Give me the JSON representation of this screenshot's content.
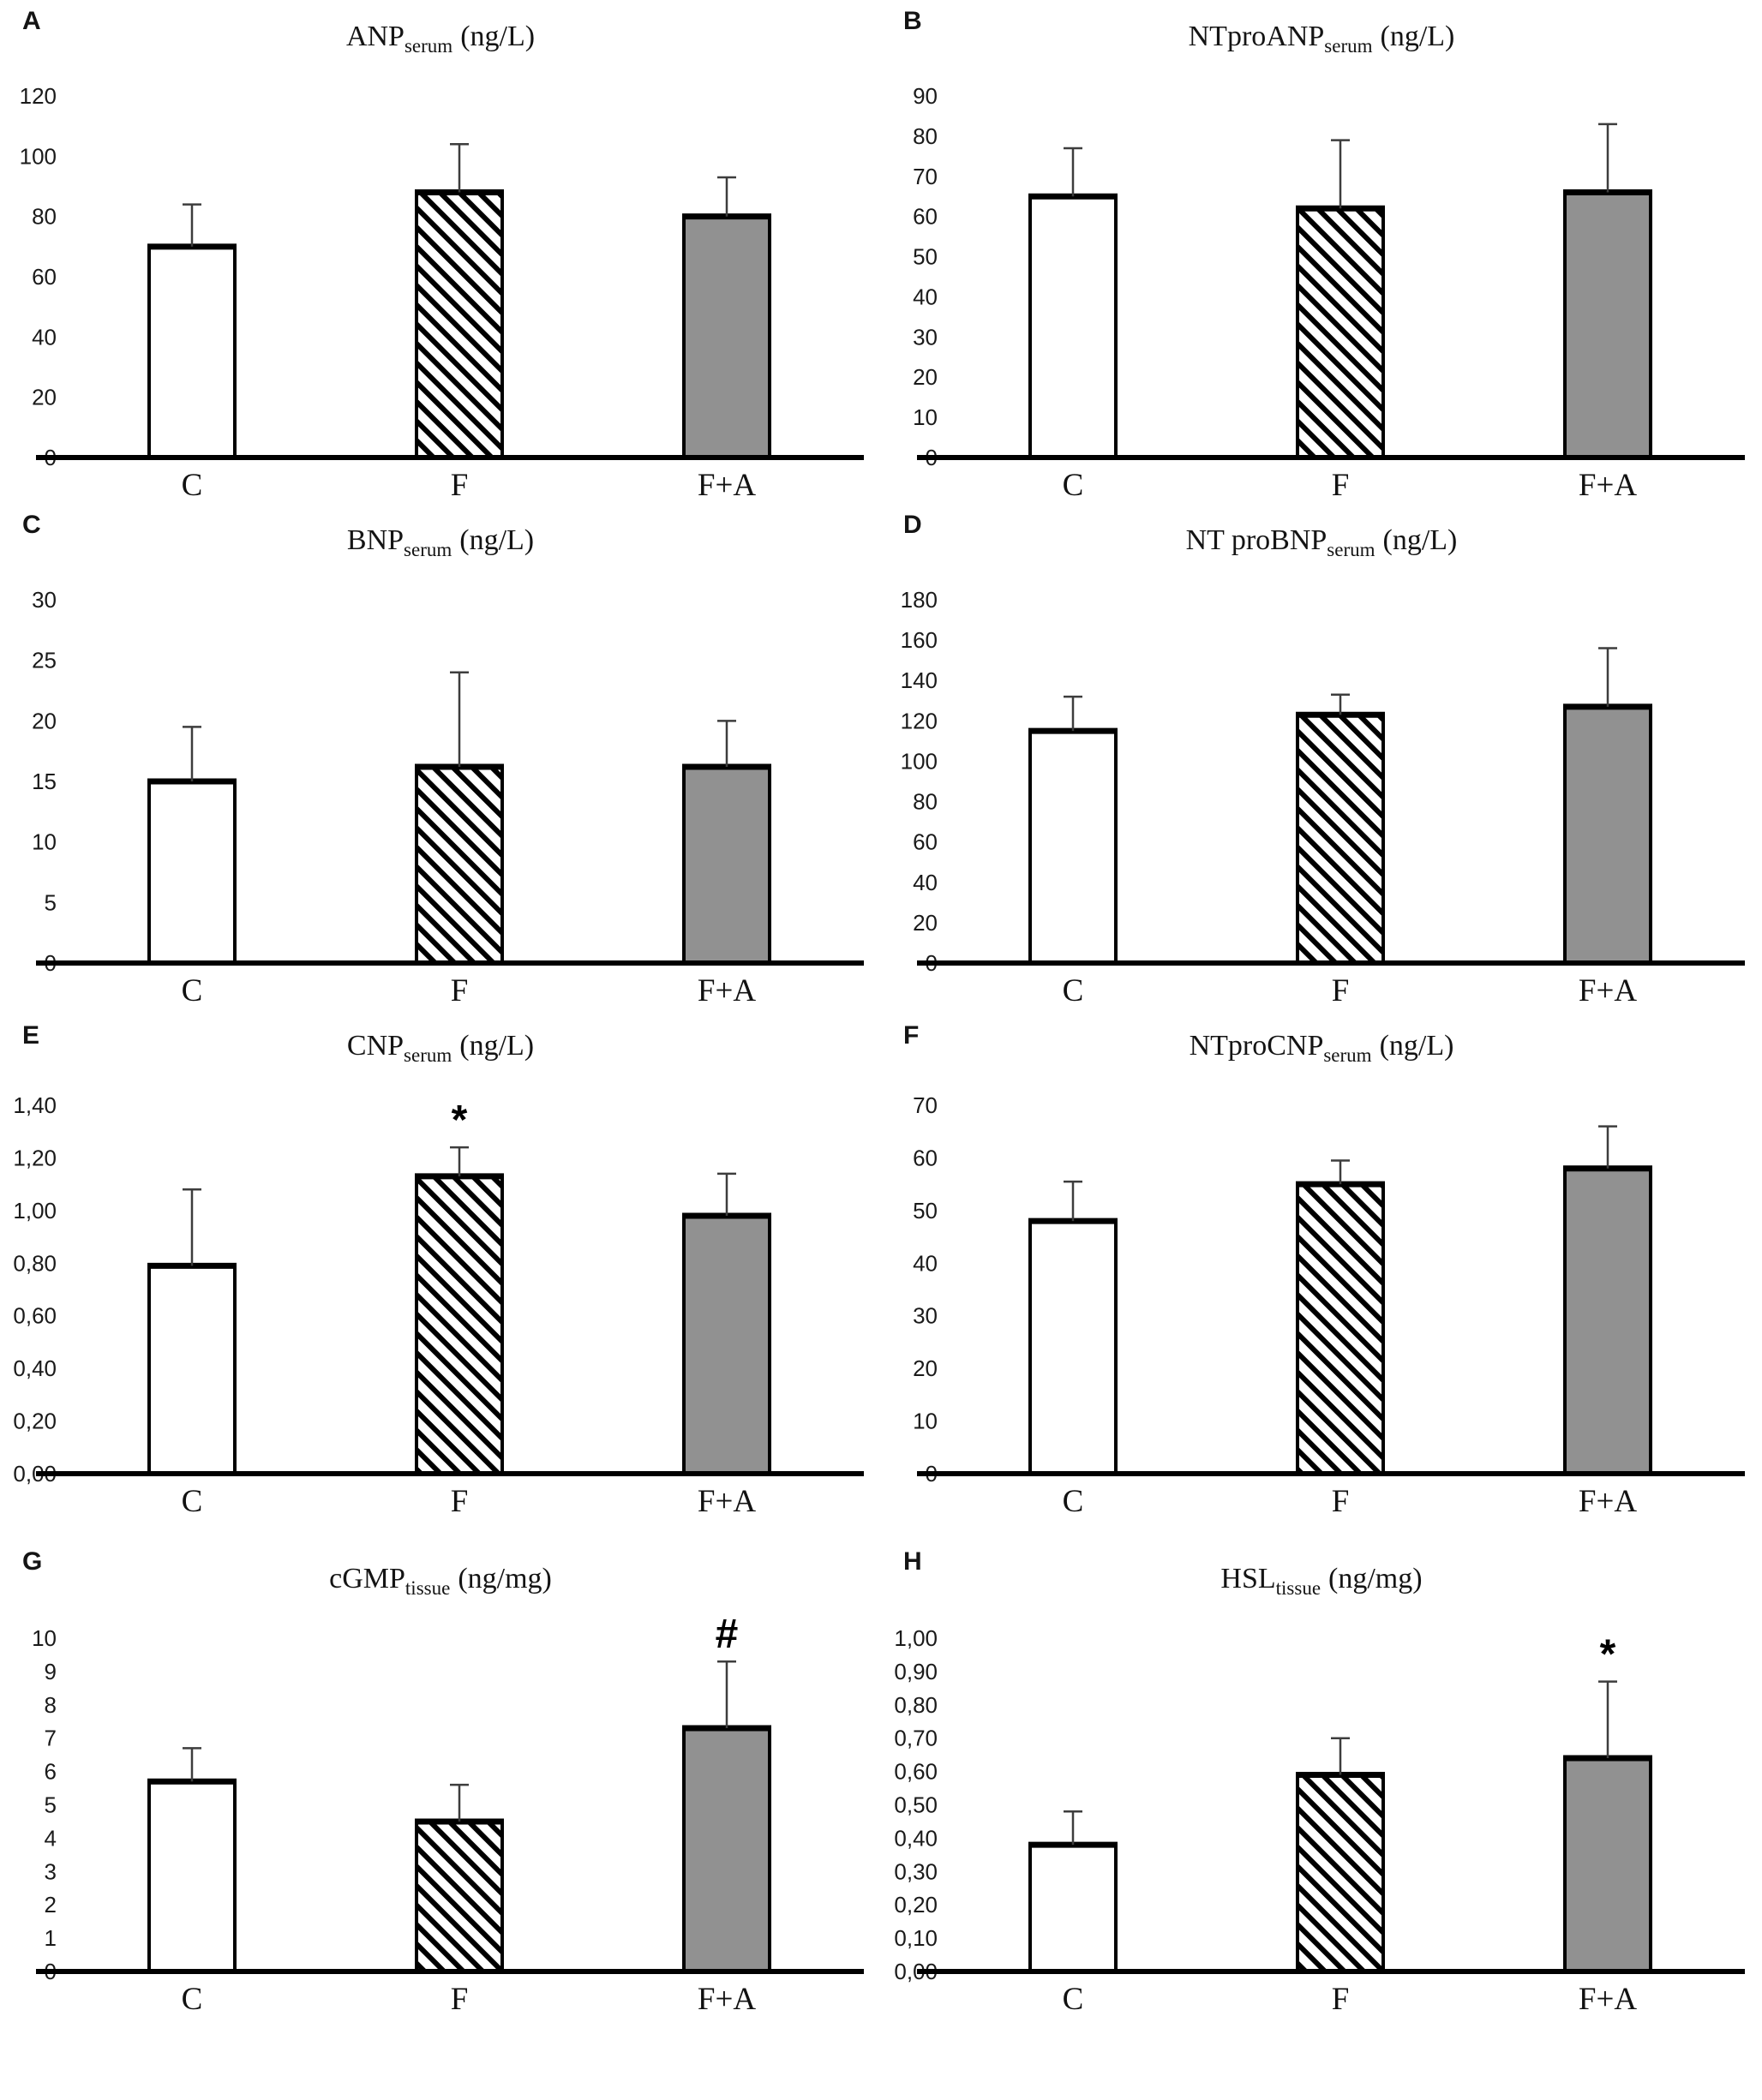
{
  "colors": {
    "background": "#ffffff",
    "bar_fill_control": "#ffffff",
    "bar_fill_gray": "#919191",
    "bar_stroke": "#000000",
    "hatch_line": "#000000",
    "error_bar": "#3d3d3d",
    "text": "#1a1a1a"
  },
  "chart_data": [
    {
      "type": "bar",
      "panel": "A",
      "title": {
        "main": "ANP",
        "sub": "serum",
        "unit": "(ng/L)"
      },
      "categories": [
        "C",
        "F",
        "F+A"
      ],
      "values": [
        70,
        88,
        80
      ],
      "error_top": [
        84,
        104,
        93
      ],
      "ylim": [
        0,
        120
      ],
      "ytick_step": 20,
      "ytick_labels": [
        "120",
        "100",
        "80",
        "60",
        "40",
        "20",
        "0"
      ],
      "bar_styles": [
        "white",
        "hatched",
        "gray"
      ],
      "annotations": [],
      "grid": false,
      "legend": null
    },
    {
      "type": "bar",
      "panel": "B",
      "title": {
        "main": "NTproANP",
        "sub": "serum",
        "unit": "(ng/L)"
      },
      "categories": [
        "C",
        "F",
        "F+A"
      ],
      "values": [
        65,
        62,
        66
      ],
      "error_top": [
        77,
        79,
        83
      ],
      "ylim": [
        0,
        90
      ],
      "ytick_step": 10,
      "ytick_labels": [
        "90",
        "80",
        "70",
        "60",
        "50",
        "40",
        "30",
        "20",
        "10",
        "0"
      ],
      "bar_styles": [
        "white",
        "hatched",
        "gray"
      ],
      "annotations": [],
      "grid": false,
      "legend": null
    },
    {
      "type": "bar",
      "panel": "C",
      "title": {
        "main": "BNP",
        "sub": "serum",
        "unit": "(ng/L)"
      },
      "categories": [
        "C",
        "F",
        "F+A"
      ],
      "values": [
        15,
        16.2,
        16.2
      ],
      "error_top": [
        19.5,
        24,
        20
      ],
      "ylim": [
        0,
        30
      ],
      "ytick_step": 5,
      "ytick_labels": [
        "30",
        "25",
        "20",
        "15",
        "10",
        "5",
        "0"
      ],
      "bar_styles": [
        "white",
        "hatched",
        "gray"
      ],
      "annotations": [],
      "grid": false,
      "legend": null
    },
    {
      "type": "bar",
      "panel": "D",
      "title": {
        "main": "NT proBNP",
        "sub": "serum",
        "unit": "(ng/L)"
      },
      "categories": [
        "C",
        "F",
        "F+A"
      ],
      "values": [
        115,
        123,
        127
      ],
      "error_top": [
        132,
        133,
        156
      ],
      "ylim": [
        0,
        180
      ],
      "ytick_step": 20,
      "ytick_labels": [
        "180",
        "160",
        "140",
        "120",
        "100",
        "80",
        "60",
        "40",
        "20",
        "0"
      ],
      "bar_styles": [
        "white",
        "hatched",
        "gray"
      ],
      "annotations": [],
      "grid": false,
      "legend": null
    },
    {
      "type": "bar",
      "panel": "E",
      "title": {
        "main": "CNP",
        "sub": "serum",
        "unit": "(ng/L)"
      },
      "categories": [
        "C",
        "F",
        "F+A"
      ],
      "values": [
        0.79,
        1.13,
        0.98
      ],
      "error_top": [
        1.08,
        1.24,
        1.14
      ],
      "ylim": [
        0,
        1.4
      ],
      "ytick_step": 0.2,
      "ytick_labels": [
        "1,40",
        "1,20",
        "1,00",
        "0,80",
        "0,60",
        "0,40",
        "0,20",
        "0,00"
      ],
      "bar_styles": [
        "white",
        "hatched",
        "gray"
      ],
      "annotations": [
        {
          "bar": 1,
          "symbol": "*"
        }
      ],
      "grid": false,
      "legend": null
    },
    {
      "type": "bar",
      "panel": "F",
      "title": {
        "main": "NTproCNP",
        "sub": "serum",
        "unit": "(ng/L)"
      },
      "categories": [
        "C",
        "F",
        "F+A"
      ],
      "values": [
        48,
        55,
        58
      ],
      "error_top": [
        55.5,
        59.5,
        66
      ],
      "ylim": [
        0,
        70
      ],
      "ytick_step": 10,
      "ytick_labels": [
        "70",
        "60",
        "50",
        "40",
        "30",
        "20",
        "10",
        "0"
      ],
      "bar_styles": [
        "white",
        "hatched",
        "gray"
      ],
      "annotations": [],
      "grid": false,
      "legend": null
    },
    {
      "type": "bar",
      "panel": "G",
      "title": {
        "main": "cGMP",
        "sub": "tissue",
        "unit": "(ng/mg)"
      },
      "categories": [
        "C",
        "F",
        "F+A"
      ],
      "values": [
        5.7,
        4.5,
        7.3
      ],
      "error_top": [
        6.7,
        5.6,
        9.3
      ],
      "ylim": [
        0,
        10
      ],
      "ytick_step": 1,
      "ytick_labels": [
        "10",
        "9",
        "8",
        "7",
        "6",
        "5",
        "4",
        "3",
        "2",
        "1",
        "0"
      ],
      "bar_styles": [
        "white",
        "hatched",
        "gray"
      ],
      "annotations": [
        {
          "bar": 2,
          "symbol": "#"
        }
      ],
      "grid": false,
      "legend": null
    },
    {
      "type": "bar",
      "panel": "H",
      "title": {
        "main": "HSL",
        "sub": "tissue",
        "unit": "(ng/mg)"
      },
      "categories": [
        "C",
        "F",
        "F+A"
      ],
      "values": [
        0.38,
        0.59,
        0.64
      ],
      "error_top": [
        0.48,
        0.7,
        0.87
      ],
      "ylim": [
        0,
        1.0
      ],
      "ytick_step": 0.1,
      "ytick_labels": [
        "1,00",
        "0,90",
        "0,80",
        "0,70",
        "0,60",
        "0,50",
        "0,40",
        "0,30",
        "0,20",
        "0,10",
        "0,00"
      ],
      "bar_styles": [
        "white",
        "hatched",
        "gray"
      ],
      "annotations": [
        {
          "bar": 2,
          "symbol": "*"
        }
      ],
      "grid": false,
      "legend": null
    }
  ]
}
